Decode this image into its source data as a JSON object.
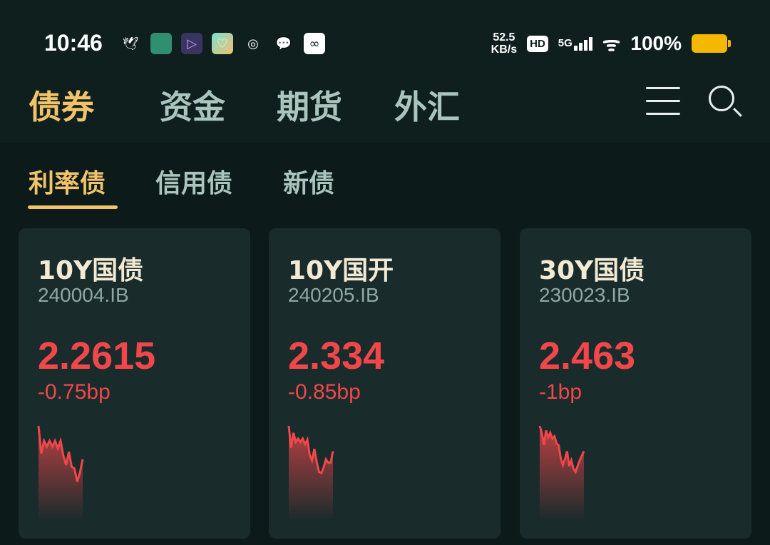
{
  "status_bar": {
    "time": "10:46",
    "speed_value": "52.5",
    "speed_unit": "KB/s",
    "hd": "HD",
    "network": "5G",
    "battery": "100%",
    "app_icons": [
      "bird-notification-icon",
      "green-app-icon",
      "video-app-icon",
      "heart-app-icon",
      "weibo-icon",
      "wechat-icon",
      "cloud-app-icon"
    ]
  },
  "top_nav": {
    "tabs": [
      {
        "label": "债券",
        "active": true
      },
      {
        "label": "资金"
      },
      {
        "label": "期货"
      },
      {
        "label": "外汇"
      }
    ],
    "menu_icon": "hamburger-menu-icon",
    "search_icon": "search-icon"
  },
  "sub_tabs": [
    {
      "label": "利率债",
      "active": true
    },
    {
      "label": "信用债"
    },
    {
      "label": "新债"
    }
  ],
  "colors": {
    "accent": "#f2c46a",
    "down_red": "#f2474a",
    "card_bg": "#1a2b2c",
    "bg": "#0c1a19"
  },
  "cards": [
    {
      "name": "10Y国债",
      "code": "240004.IB",
      "value": "2.2615",
      "change": "-0.75bp",
      "sparkline": [
        100,
        52,
        74,
        64,
        74,
        64,
        74,
        61,
        74,
        48,
        32,
        55,
        29,
        26,
        3,
        19,
        42
      ]
    },
    {
      "name": "10Y国开",
      "code": "240205.IB",
      "value": "2.334",
      "change": "-0.85bp",
      "sparkline": [
        100,
        62,
        88,
        72,
        78,
        72,
        78,
        68,
        76,
        50,
        40,
        60,
        38,
        20,
        18,
        28,
        42,
        36,
        36,
        56
      ]
    },
    {
      "name": "30Y国债",
      "code": "230023.IB",
      "value": "2.463",
      "change": "-1bp",
      "sparkline": [
        100,
        88,
        67,
        92,
        80,
        88,
        78,
        82,
        70,
        66,
        44,
        32,
        42,
        56,
        30,
        40,
        26,
        20,
        30,
        40,
        48,
        56
      ]
    }
  ]
}
